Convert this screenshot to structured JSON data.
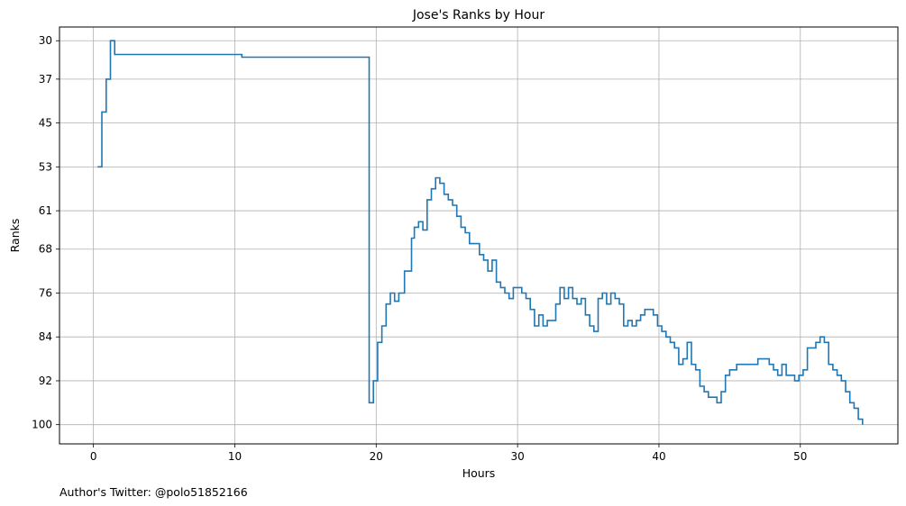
{
  "footer": "Author's Twitter: @polo51852166",
  "chart_data": {
    "type": "line",
    "drawstyle": "step",
    "title": "Jose's Ranks by Hour",
    "xlabel": "Hours",
    "ylabel": "Ranks",
    "xlim": [
      -2.4,
      56.9
    ],
    "ylim": [
      103.5,
      27.5
    ],
    "y_inverted": true,
    "xticks": [
      0,
      10,
      20,
      30,
      40,
      50
    ],
    "yticks": [
      30,
      37,
      45,
      53,
      61,
      68,
      76,
      84,
      92,
      100
    ],
    "grid": true,
    "line_color": "#1f77b4",
    "series": [
      {
        "x": [
          0.3,
          0.6,
          0.9,
          1.2,
          1.5,
          10.5,
          19.5,
          19.8,
          20.1,
          20.4,
          20.7,
          21.0,
          21.3,
          21.6,
          22.0,
          22.2,
          22.5,
          22.7,
          23.0,
          23.3,
          23.6,
          23.9,
          24.2,
          24.5,
          24.8,
          25.1,
          25.4,
          25.7,
          26.0,
          26.3,
          26.6,
          27.0,
          27.3,
          27.6,
          27.9,
          28.2,
          28.5,
          28.8,
          29.1,
          29.4,
          29.7,
          30.0,
          30.3,
          30.6,
          30.9,
          31.2,
          31.5,
          31.8,
          32.1,
          32.4,
          32.7,
          33.0,
          33.3,
          33.6,
          33.9,
          34.2,
          34.5,
          34.8,
          35.1,
          35.4,
          35.7,
          36.0,
          36.3,
          36.6,
          36.9,
          37.2,
          37.5,
          37.8,
          38.1,
          38.4,
          38.7,
          39.0,
          39.3,
          39.6,
          39.9,
          40.2,
          40.5,
          40.8,
          41.1,
          41.4,
          41.7,
          42.0,
          42.3,
          42.6,
          42.9,
          43.2,
          43.5,
          43.8,
          44.1,
          44.4,
          44.7,
          45.0,
          45.5,
          46.0,
          46.5,
          47.0,
          47.5,
          47.8,
          48.1,
          48.4,
          48.7,
          49.0,
          49.3,
          49.6,
          49.9,
          50.2,
          50.5,
          50.8,
          51.1,
          51.4,
          51.7,
          52.0,
          52.3,
          52.6,
          52.9,
          53.2,
          53.5,
          53.8,
          54.1,
          54.4
        ],
        "y": [
          53,
          43,
          37,
          30,
          32.5,
          33,
          96,
          92,
          85,
          82,
          78,
          76,
          77.5,
          76,
          72,
          72,
          66,
          64,
          63,
          64.5,
          59,
          57,
          55,
          56,
          58,
          59,
          60,
          62,
          64,
          65,
          67,
          67,
          69,
          70,
          72,
          70,
          74,
          75,
          76,
          77,
          75,
          75,
          76,
          77,
          79,
          82,
          80,
          82,
          81,
          81,
          78,
          75,
          77,
          75,
          77,
          78,
          77,
          80,
          82,
          83,
          77,
          76,
          78,
          76,
          77,
          78,
          82,
          81,
          82,
          81,
          80,
          79,
          79,
          80,
          82,
          83,
          84,
          85,
          86,
          89,
          88,
          85,
          89,
          90,
          93,
          94,
          95,
          95,
          96,
          94,
          91,
          90,
          89,
          89,
          89,
          88,
          88,
          89,
          90,
          91,
          89,
          91,
          91,
          92,
          91,
          90,
          86,
          86,
          85,
          84,
          85,
          89,
          90,
          91,
          92,
          94,
          96,
          97,
          99,
          100
        ]
      }
    ]
  }
}
